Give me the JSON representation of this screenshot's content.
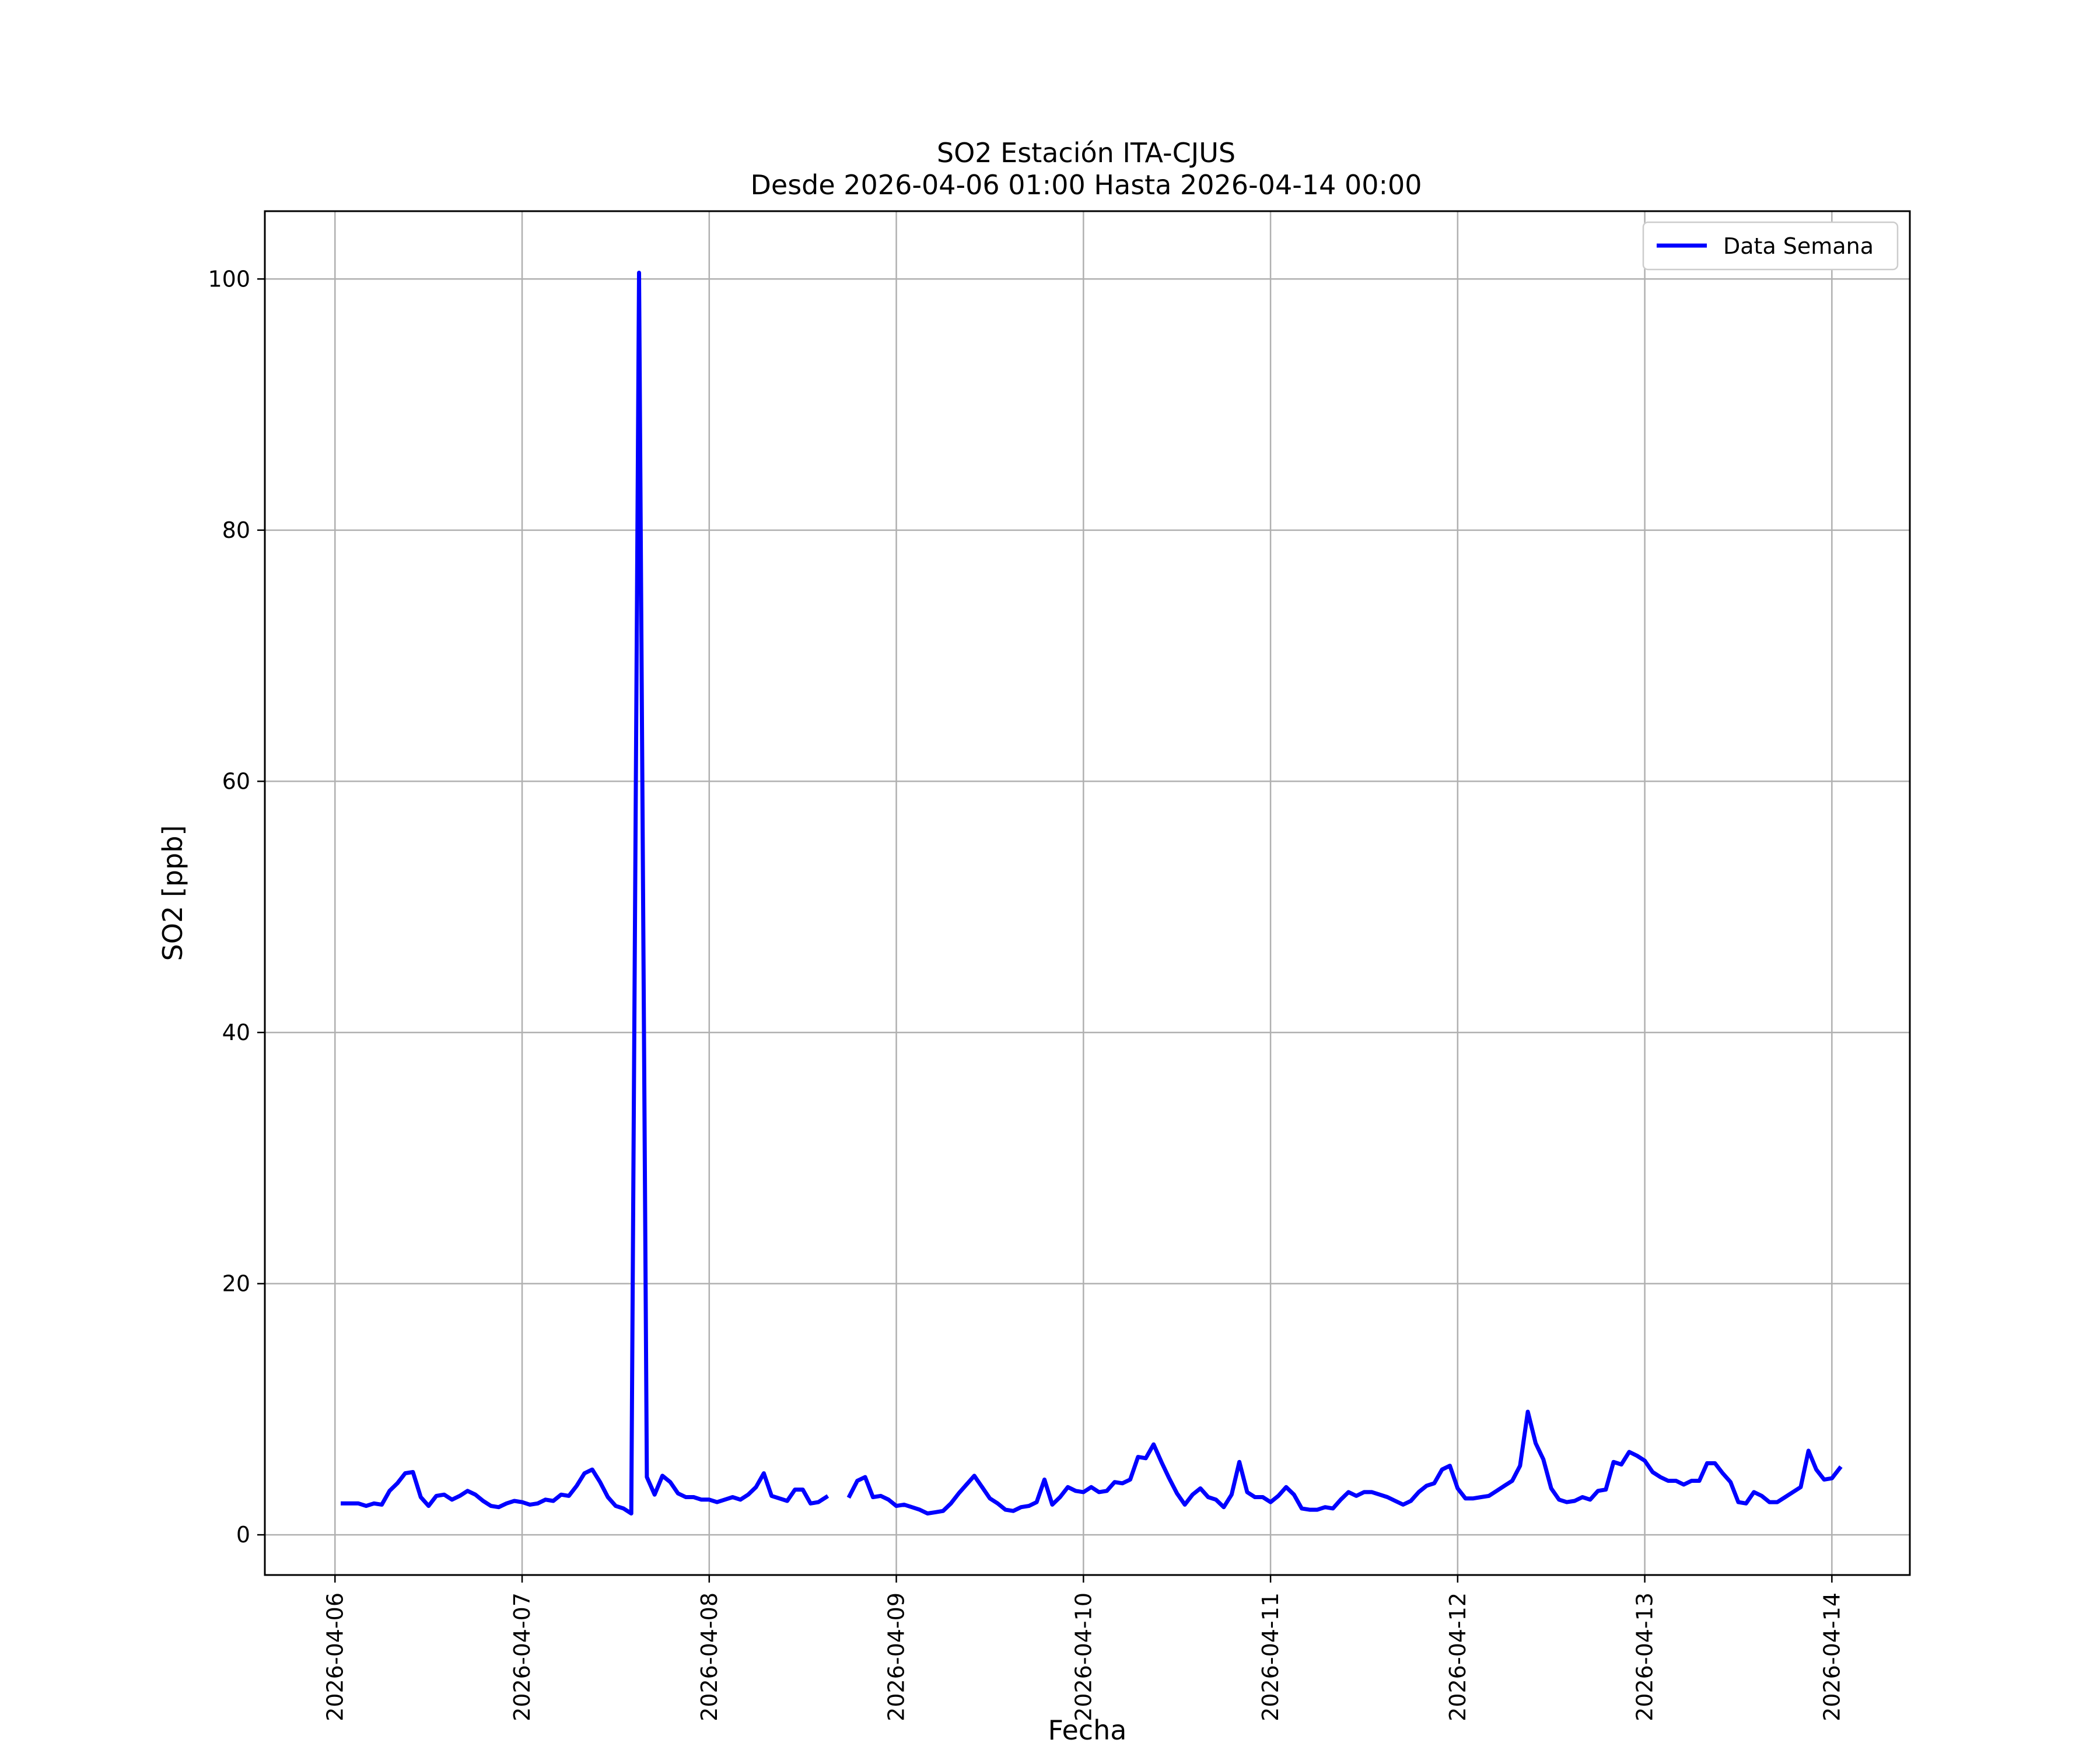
{
  "chart_data": {
    "type": "line",
    "title": "SO2 Estación ITA-CJUS",
    "subtitle": "Desde 2026-04-06 01:00 Hasta 2026-04-14 00:00",
    "xlabel": "Fecha",
    "ylabel": "SO2 [ppb]",
    "xlim": [
      "2026-04-05 15:00",
      "2026-04-14 10:00"
    ],
    "ylim": [
      -3.2,
      105.4
    ],
    "x_ticks": [
      "2026-04-06",
      "2026-04-07",
      "2026-04-08",
      "2026-04-09",
      "2026-04-10",
      "2026-04-11",
      "2026-04-12",
      "2026-04-13",
      "2026-04-14"
    ],
    "y_ticks": [
      0,
      20,
      40,
      60,
      80,
      100
    ],
    "grid": true,
    "legend": {
      "position": "top-right",
      "entries": [
        "Data Semana"
      ]
    },
    "x_start": "2026-04-06 01:00",
    "x_step_hours": 1,
    "series": [
      {
        "name": "Data Semana",
        "color": "#0000ff",
        "values": [
          2.5,
          2.5,
          2.5,
          2.3,
          2.5,
          2.4,
          3.5,
          4.1,
          4.9,
          5.0,
          3.0,
          2.3,
          3.1,
          3.2,
          2.8,
          3.1,
          3.5,
          3.2,
          2.7,
          2.3,
          2.2,
          2.5,
          2.7,
          2.6,
          2.4,
          2.5,
          2.8,
          2.7,
          3.2,
          3.1,
          3.9,
          4.9,
          5.2,
          4.2,
          3.0,
          2.3,
          2.1,
          1.7,
          100.5,
          4.6,
          3.2,
          4.7,
          4.2,
          3.3,
          3.0,
          3.0,
          2.8,
          2.8,
          2.6,
          2.8,
          3.0,
          2.8,
          3.2,
          3.8,
          4.9,
          3.1,
          2.9,
          2.7,
          3.6,
          3.6,
          2.5,
          2.6,
          3.0,
          null,
          null,
          3.1,
          4.3,
          4.6,
          3.0,
          3.1,
          2.8,
          2.3,
          2.4,
          2.2,
          2.0,
          1.7,
          1.8,
          1.9,
          2.5,
          3.3,
          4.0,
          4.7,
          3.8,
          2.9,
          2.5,
          2.0,
          1.9,
          2.2,
          2.3,
          2.6,
          4.4,
          2.4,
          3.0,
          3.8,
          3.5,
          3.4,
          3.8,
          3.4,
          3.5,
          4.2,
          4.1,
          4.4,
          6.2,
          6.1,
          7.2,
          5.8,
          4.5,
          3.3,
          2.4,
          3.2,
          3.7,
          3.0,
          2.8,
          2.2,
          3.2,
          5.8,
          3.4,
          3.0,
          3.0,
          2.6,
          3.1,
          3.8,
          3.2,
          2.1,
          2.0,
          2.0,
          2.2,
          2.1,
          2.8,
          3.4,
          3.1,
          3.4,
          3.4,
          3.2,
          3.0,
          2.7,
          2.4,
          2.7,
          3.4,
          3.9,
          4.1,
          5.2,
          5.5,
          3.7,
          2.9,
          2.9,
          3.0,
          3.1,
          3.5,
          3.9,
          4.3,
          5.5,
          9.8,
          7.3,
          6.0,
          3.7,
          2.8,
          2.6,
          2.7,
          3.0,
          2.8,
          3.5,
          3.6,
          5.8,
          5.6,
          6.6,
          6.3,
          5.9,
          5.0,
          4.6,
          4.3,
          4.3,
          4.0,
          4.3,
          4.3,
          5.7,
          5.7,
          4.9,
          4.2,
          2.6,
          2.5,
          3.4,
          3.1,
          2.6,
          2.6,
          3.0,
          3.4,
          3.8,
          6.7,
          5.2,
          4.4,
          4.5,
          5.3
        ]
      }
    ]
  }
}
